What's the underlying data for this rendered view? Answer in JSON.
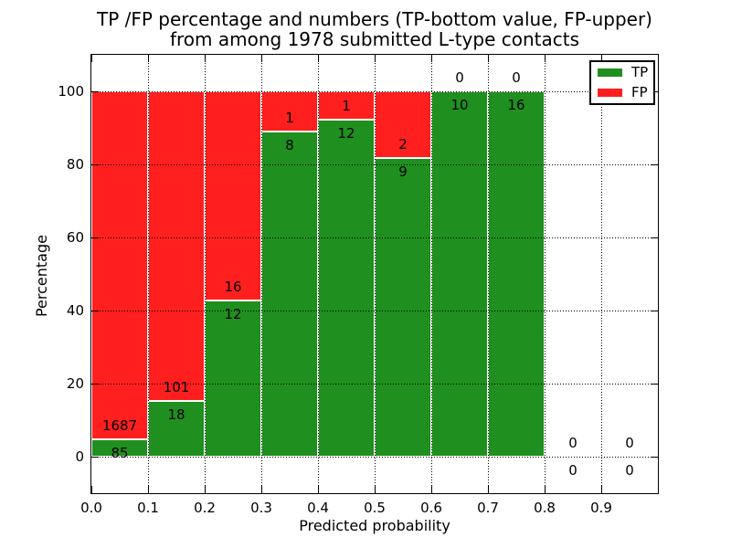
{
  "figure": {
    "title_line1": "TP /FP percentage and numbers (TP-bottom value, FP-upper)",
    "title_line2": "from among 1978 submitted L-type contacts"
  },
  "chart_data": {
    "type": "bar",
    "stacked": true,
    "title": "TP /FP percentage and numbers (TP-bottom value, FP-upper) from among 1978 submitted L-type contacts",
    "xlabel": "Predicted probability",
    "ylabel": "Percentage",
    "xlim": [
      0.0,
      1.0
    ],
    "ylim": [
      -10,
      110
    ],
    "grid": true,
    "total_contacts": 1978,
    "x_tick_labels": [
      "0.0",
      "0.1",
      "0.2",
      "0.3",
      "0.4",
      "0.5",
      "0.6",
      "0.7",
      "0.8",
      "0.9"
    ],
    "y_tick_values": [
      0,
      20,
      40,
      60,
      80,
      100
    ],
    "colors": {
      "tp": "#1f8f1f",
      "fp": "#ff1f1f",
      "grid": "#000000",
      "text": "#000000"
    },
    "legend": [
      {
        "label": "TP",
        "color": "#1f8f1f"
      },
      {
        "label": "FP",
        "color": "#ff1f1f"
      }
    ],
    "legend_position": "upper right",
    "bins": [
      {
        "x_start": 0.0,
        "x_end": 0.1,
        "tp": 85,
        "fp": 1687,
        "tp_pct": 4.8,
        "fp_pct": 95.2
      },
      {
        "x_start": 0.1,
        "x_end": 0.2,
        "tp": 18,
        "fp": 101,
        "tp_pct": 15.1,
        "fp_pct": 84.9
      },
      {
        "x_start": 0.2,
        "x_end": 0.3,
        "tp": 12,
        "fp": 16,
        "tp_pct": 42.9,
        "fp_pct": 57.1
      },
      {
        "x_start": 0.3,
        "x_end": 0.4,
        "tp": 8,
        "fp": 1,
        "tp_pct": 88.9,
        "fp_pct": 11.1
      },
      {
        "x_start": 0.4,
        "x_end": 0.5,
        "tp": 12,
        "fp": 1,
        "tp_pct": 92.3,
        "fp_pct": 7.7
      },
      {
        "x_start": 0.5,
        "x_end": 0.6,
        "tp": 9,
        "fp": 2,
        "tp_pct": 81.8,
        "fp_pct": 18.2
      },
      {
        "x_start": 0.6,
        "x_end": 0.7,
        "tp": 10,
        "fp": 0,
        "tp_pct": 100,
        "fp_pct": 0
      },
      {
        "x_start": 0.7,
        "x_end": 0.8,
        "tp": 16,
        "fp": 0,
        "tp_pct": 100,
        "fp_pct": 0
      },
      {
        "x_start": 0.8,
        "x_end": 0.9,
        "tp": 0,
        "fp": 0,
        "tp_pct": 0,
        "fp_pct": 0
      },
      {
        "x_start": 0.9,
        "x_end": 1.0,
        "tp": 0,
        "fp": 0,
        "tp_pct": 0,
        "fp_pct": 0
      }
    ]
  }
}
